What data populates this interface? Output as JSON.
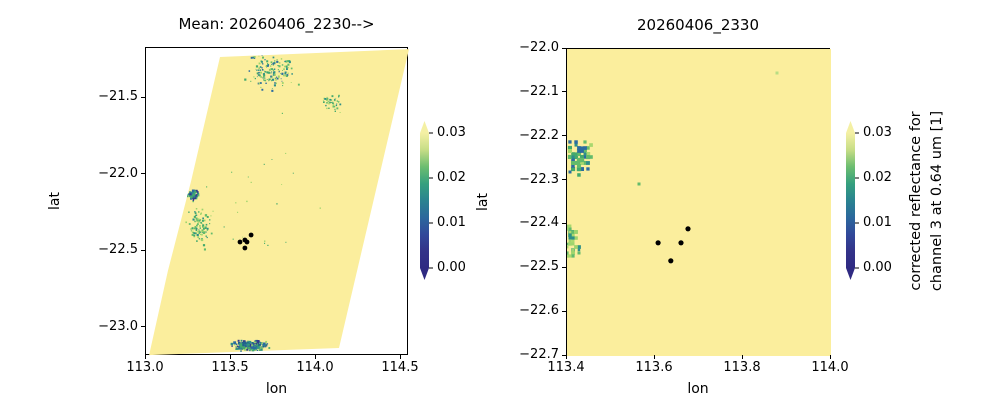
{
  "figure": {
    "background": "#ffffff",
    "frame_color": "#000000",
    "text_color": "#000000",
    "fill_color": "#fbee9d",
    "fire_color": "#000000",
    "colormap_stops_bottom_to_top": [
      "#2f2a82",
      "#333389",
      "#31499a",
      "#2b689c",
      "#2a8390",
      "#35a07e",
      "#6cbd70",
      "#c6dd86",
      "#f4f0a4"
    ]
  },
  "chart_data": {
    "type": "heatmap",
    "description": "Two geographic pcolormesh panels of satellite corrected reflectance (pale yellow = clipped high values ~0.03+), with speckled low-reflectance cloud/coast pixels and black fire-hotspot dots",
    "panels": [
      {
        "title": "Mean: 20260406_2230-->",
        "xlabel": "lon",
        "ylabel": "lat",
        "xlim": [
          113.0,
          114.547
        ],
        "ylim": [
          -23.186,
          -21.173
        ],
        "xticks": [
          113.0,
          113.5,
          114.0,
          114.5
        ],
        "xtick_labels": [
          "113.0",
          "113.5",
          "114.0",
          "114.5"
        ],
        "yticks": [
          -21.5,
          -22.0,
          -22.5,
          -23.0
        ],
        "ytick_labels": [
          "−21.5",
          "−22.0",
          "−22.5",
          "−23.0"
        ],
        "seed": 7,
        "snap": 0,
        "swath_polygon": [
          [
            113.435,
            -21.232
          ],
          [
            114.547,
            -21.18
          ],
          [
            114.135,
            -23.134
          ],
          [
            113.018,
            -23.18
          ],
          [
            113.129,
            -22.63
          ],
          [
            113.265,
            -22.042
          ]
        ],
        "clusters": [
          {
            "cx": 113.73,
            "cy": -21.33,
            "sx": 0.19,
            "sy": 0.15,
            "n": 150,
            "smin": 0.8,
            "smax": 2.2,
            "colors": [
              "#44a96d",
              "#2e8f88",
              "#63bb6b",
              "#9ed46d",
              "#2b6ba0"
            ]
          },
          {
            "cx": 114.1,
            "cy": -21.53,
            "sx": 0.1,
            "sy": 0.08,
            "n": 45,
            "smin": 0.8,
            "smax": 2.0,
            "colors": [
              "#44a96d",
              "#63bb6b",
              "#9ed46d",
              "#2e8f88"
            ]
          },
          {
            "cx": 113.28,
            "cy": -22.13,
            "sx": 0.05,
            "sy": 0.05,
            "n": 55,
            "smin": 1.4,
            "smax": 2.6,
            "colors": [
              "#2e8f88",
              "#2b6ba0",
              "#33388e",
              "#44a96d",
              "#63bb6b"
            ]
          },
          {
            "cx": 113.32,
            "cy": -22.34,
            "sx": 0.1,
            "sy": 0.16,
            "n": 95,
            "smin": 1.0,
            "smax": 2.2,
            "colors": [
              "#9ed46d",
              "#63bb6b",
              "#44a96d",
              "#2e8f88"
            ]
          },
          {
            "cx": 113.62,
            "cy": -23.12,
            "sx": 0.13,
            "sy": 0.045,
            "n": 190,
            "smin": 1.2,
            "smax": 3.0,
            "colors": [
              "#2e8f88",
              "#2b6ba0",
              "#33388e",
              "#20638b",
              "#44a96d",
              "#9ed46d"
            ]
          },
          {
            "cx": 113.7,
            "cy": -22.2,
            "sx": 0.45,
            "sy": 0.85,
            "n": 22,
            "smin": 0.8,
            "smax": 1.4,
            "colors": [
              "#63bb6b",
              "#9ed46d",
              "#44a96d"
            ]
          }
        ],
        "fire_pixels": [
          [
            113.618,
            -22.395
          ],
          [
            113.582,
            -22.428
          ],
          [
            113.553,
            -22.441
          ],
          [
            113.594,
            -22.441
          ],
          [
            113.582,
            -22.48
          ]
        ],
        "fire_radius": 2.4
      },
      {
        "title": "20260406_2330",
        "xlabel": "lon",
        "ylabel": "lat",
        "xlim": [
          113.4,
          114.0
        ],
        "ylim": [
          -22.7,
          -22.0
        ],
        "xticks": [
          113.4,
          113.6,
          113.8,
          114.0
        ],
        "xtick_labels": [
          "113.4",
          "113.6",
          "113.8",
          "114.0"
        ],
        "yticks": [
          -22.0,
          -22.1,
          -22.2,
          -22.3,
          -22.4,
          -22.5,
          -22.6,
          -22.7
        ],
        "ytick_labels": [
          "−22.0",
          "−22.1",
          "−22.2",
          "−22.3",
          "−22.4",
          "−22.5",
          "−22.6",
          "−22.7"
        ],
        "seed": 12,
        "snap": 3,
        "swath_polygon": null,
        "clusters": [
          {
            "cx": 113.432,
            "cy": -22.245,
            "sx": 0.042,
            "sy": 0.052,
            "n": 62,
            "smin": 3.0,
            "smax": 4.5,
            "colors": [
              "#2e8f88",
              "#44a96d",
              "#63bb6b",
              "#a9d86e",
              "#2b6ba0"
            ]
          },
          {
            "cx": 113.413,
            "cy": -22.44,
            "sx": 0.022,
            "sy": 0.058,
            "n": 38,
            "smin": 2.5,
            "smax": 4.0,
            "colors": [
              "#9ed46d",
              "#a9d86e",
              "#63bb6b",
              "#2e8f88"
            ]
          },
          {
            "cx": 113.875,
            "cy": -22.055,
            "sx": 0.0,
            "sy": 0.0,
            "n": 1,
            "smin": 3.0,
            "smax": 3.0,
            "colors": [
              "#b8dd84"
            ]
          },
          {
            "cx": 113.564,
            "cy": -22.308,
            "sx": 0.0,
            "sy": 0.0,
            "n": 1,
            "smin": 3.0,
            "smax": 3.0,
            "colors": [
              "#63bb6b"
            ]
          }
        ],
        "fire_pixels": [
          [
            113.675,
            -22.41
          ],
          [
            113.607,
            -22.442
          ],
          [
            113.659,
            -22.442
          ],
          [
            113.636,
            -22.483
          ]
        ],
        "fire_radius": 2.6
      }
    ],
    "colorbars": [
      {
        "ticks": [
          0.0,
          0.01,
          0.02,
          0.03
        ],
        "tick_labels": [
          "0.00",
          "0.01",
          "0.02",
          "0.03"
        ],
        "vmin": 0.0,
        "vmax": 0.03,
        "extend": "both",
        "label_lines": []
      },
      {
        "ticks": [
          0.0,
          0.01,
          0.02,
          0.03
        ],
        "tick_labels": [
          "0.00",
          "0.01",
          "0.02",
          "0.03"
        ],
        "vmin": 0.0,
        "vmax": 0.03,
        "extend": "both",
        "label_lines": [
          "corrected reflectance for",
          "channel 3 at 0.64 um [1]"
        ]
      }
    ]
  }
}
